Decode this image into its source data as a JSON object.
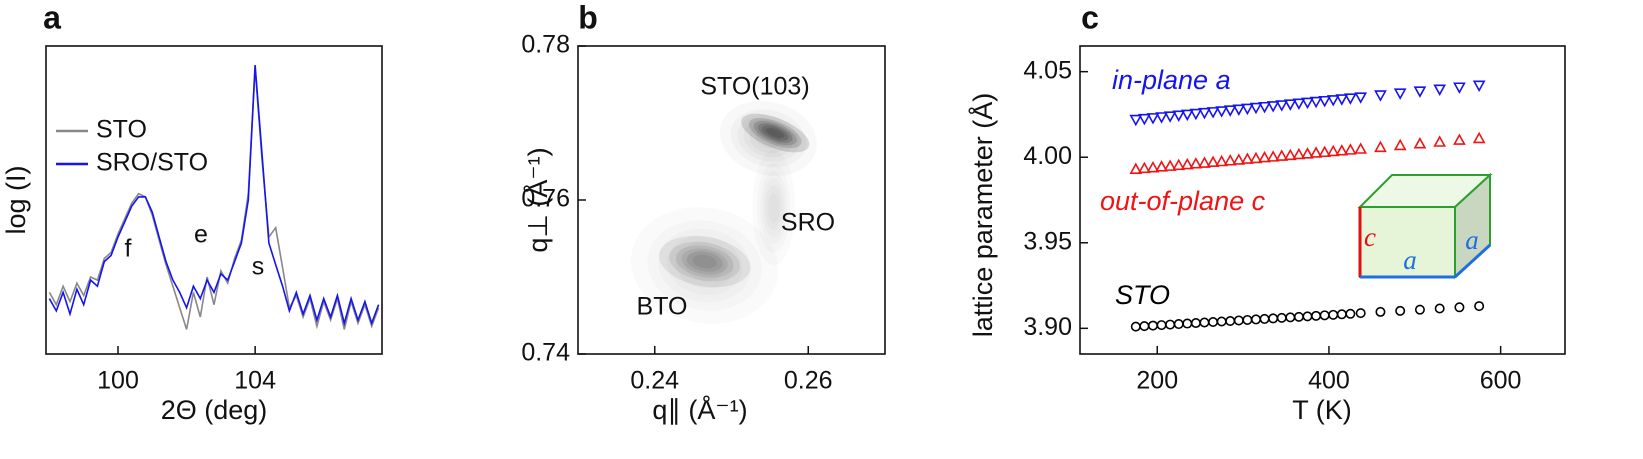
{
  "chart_data": [
    {
      "type": "line",
      "panel": "a",
      "xlabel": "2Θ (deg)",
      "ylabel": "log (I)",
      "xlim": [
        97.9,
        107.7
      ],
      "ylim": [
        0,
        10
      ],
      "xticks": [
        100,
        104
      ],
      "legend": "upper left",
      "x": [
        98.0,
        98.2,
        98.4,
        98.6,
        98.8,
        99.0,
        99.2,
        99.4,
        99.6,
        99.8,
        100.0,
        100.2,
        100.4,
        100.6,
        100.8,
        101.0,
        101.2,
        101.4,
        101.6,
        101.8,
        102.0,
        102.2,
        102.4,
        102.6,
        102.8,
        103.0,
        103.2,
        103.4,
        103.6,
        103.8,
        104.0,
        104.2,
        104.4,
        104.6,
        104.8,
        105.0,
        105.2,
        105.4,
        105.6,
        105.8,
        106.0,
        106.2,
        106.4,
        106.6,
        106.8,
        107.0,
        107.2,
        107.4,
        107.6
      ],
      "series": [
        {
          "name": "STO",
          "color": "#888888",
          "values": [
            2.0,
            1.6,
            2.2,
            1.7,
            2.3,
            1.9,
            2.5,
            2.4,
            3.1,
            3.3,
            3.9,
            4.4,
            4.9,
            5.2,
            5.1,
            4.5,
            3.7,
            2.9,
            2.2,
            1.5,
            0.8,
            2.0,
            1.2,
            2.5,
            1.6,
            2.7,
            2.3,
            3.1,
            3.7,
            5.2,
            9.3,
            6.3,
            3.8,
            4.1,
            2.8,
            1.5,
            1.9,
            1.2,
            1.8,
            0.9,
            1.7,
            1.1,
            1.8,
            0.8,
            1.7,
            1.0,
            1.6,
            0.9,
            1.5
          ]
        },
        {
          "name": "SRO/STO",
          "color": "#1414f0",
          "values": [
            1.8,
            1.4,
            2.0,
            1.3,
            2.1,
            1.6,
            2.4,
            2.2,
            3.0,
            3.2,
            3.8,
            4.3,
            4.8,
            5.1,
            5.1,
            4.6,
            3.8,
            3.0,
            2.4,
            2.0,
            1.5,
            2.2,
            1.8,
            2.4,
            2.0,
            2.6,
            2.4,
            3.0,
            3.6,
            5.0,
            9.38,
            6.5,
            3.6,
            2.9,
            2.2,
            1.4,
            2.0,
            1.3,
            1.9,
            1.1,
            1.8,
            1.2,
            1.9,
            1.0,
            1.8,
            1.1,
            1.7,
            1.0,
            1.6
          ]
        }
      ],
      "annotations": [
        "f",
        "e",
        "s"
      ]
    },
    {
      "type": "contour",
      "panel": "b",
      "xlabel": "q∥ (Å⁻¹)",
      "ylabel": "q⊥ (Å⁻¹)",
      "xlim": [
        0.23,
        0.27
      ],
      "ylim": [
        0.74,
        0.78
      ],
      "xticks": [
        0.24,
        0.26
      ],
      "yticks": [
        0.74,
        0.76,
        0.78
      ],
      "peaks": [
        {
          "x": 0.2548,
          "y": 0.768,
          "sx": 0.003,
          "sy": 0.0022,
          "angle": 15,
          "intensity": 0.2
        },
        {
          "x": 0.2557,
          "y": 0.7687,
          "sx": 0.0022,
          "sy": 0.0009,
          "angle": 22,
          "intensity": 1
        },
        {
          "x": 0.2555,
          "y": 0.759,
          "sx": 0.0013,
          "sy": 0.0035,
          "angle": 0,
          "intensity": 0.15
        },
        {
          "x": 0.2465,
          "y": 0.7515,
          "sx": 0.0045,
          "sy": 0.0035,
          "angle": 10,
          "intensity": 0.15
        },
        {
          "x": 0.2465,
          "y": 0.752,
          "sx": 0.0028,
          "sy": 0.0015,
          "angle": 10,
          "intensity": 0.55
        }
      ],
      "annotations": [
        "STO(103)",
        "SRO",
        "BTO"
      ]
    },
    {
      "type": "scatter",
      "panel": "c",
      "xlabel": "T (K)",
      "ylabel": "lattice parameter (Å)",
      "xlim": [
        110,
        675
      ],
      "ylim": [
        3.885,
        4.065
      ],
      "xticks": [
        200,
        400,
        600
      ],
      "yticks": [
        {
          "value": 3.9,
          "label": "3.90"
        },
        3.95,
        {
          "value": 4,
          "label": "4.00"
        },
        4.05
      ],
      "x": [
        175,
        185,
        195,
        205,
        215,
        225,
        235,
        245,
        255,
        265,
        275,
        285,
        295,
        305,
        315,
        325,
        335,
        345,
        355,
        365,
        375,
        385,
        395,
        405,
        415,
        425,
        437,
        460,
        483,
        506,
        529,
        552,
        575
      ],
      "series": [
        {
          "name": "in-plane a",
          "color": "#1414f0",
          "marker": "triangle-down",
          "values": [
            4.022,
            4.0225,
            4.023,
            4.0235,
            4.024,
            4.0245,
            4.025,
            4.0255,
            4.026,
            4.0265,
            4.027,
            4.0275,
            4.028,
            4.0285,
            4.029,
            4.0295,
            4.03,
            4.0305,
            4.031,
            4.0315,
            4.032,
            4.0325,
            4.033,
            4.0335,
            4.034,
            4.0345,
            4.0351,
            4.0363,
            4.0374,
            4.0386,
            4.0397,
            4.0409,
            4.042
          ]
        },
        {
          "name": "out-of-plane c",
          "color": "#f01414",
          "marker": "triangle-up",
          "values": [
            3.993,
            3.9935,
            3.9939,
            3.9944,
            3.9948,
            3.9953,
            3.9957,
            3.9962,
            3.9966,
            3.9971,
            3.9975,
            3.998,
            3.9984,
            3.9989,
            3.9993,
            3.9998,
            4.0002,
            4.0007,
            4.0011,
            4.0016,
            4.002,
            4.0025,
            4.0029,
            4.0034,
            4.0038,
            4.0043,
            4.0048,
            4.0058,
            4.0069,
            4.0079,
            4.0089,
            4.01,
            4.011
          ]
        },
        {
          "name": "STO",
          "color": "#000000",
          "marker": "circle",
          "values": [
            3.901,
            3.9013,
            3.9016,
            3.9019,
            3.9022,
            3.9025,
            3.9028,
            3.9031,
            3.9034,
            3.9037,
            3.904,
            3.9043,
            3.9046,
            3.9049,
            3.9052,
            3.9055,
            3.9058,
            3.9061,
            3.9064,
            3.9067,
            3.907,
            3.9073,
            3.9076,
            3.9079,
            3.9082,
            3.9085,
            3.9089,
            3.9096,
            3.9102,
            3.9109,
            3.9116,
            3.9123,
            3.913
          ]
        }
      ],
      "inset_labels": [
        "c",
        "a",
        "a"
      ]
    }
  ]
}
